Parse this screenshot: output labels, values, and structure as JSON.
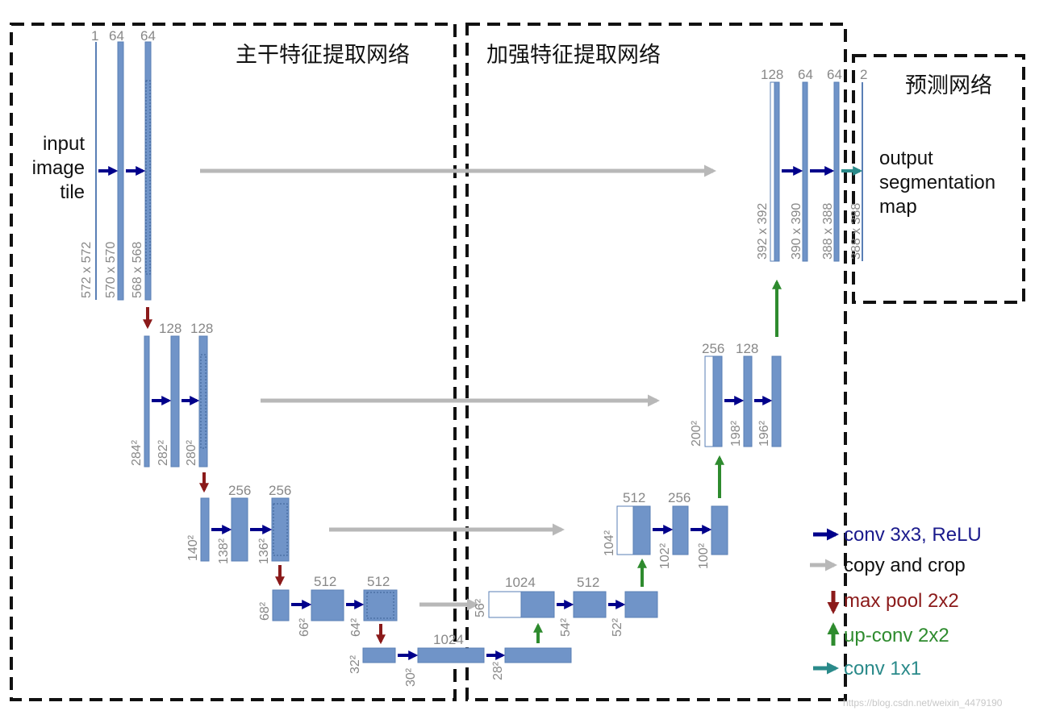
{
  "sections": {
    "backbone": "主干特征提取网络",
    "enhanced": "加强特征提取网络",
    "prediction": "预测网络"
  },
  "input_label": [
    "input",
    "image",
    "tile"
  ],
  "output_label": [
    "output",
    "segmentation",
    "map"
  ],
  "channels": {
    "l1_in": "1",
    "l1_a": "64",
    "l1_b": "64",
    "l2_a": "128",
    "l2_b": "128",
    "l3_a": "256",
    "l3_b": "256",
    "l4_a": "512",
    "l4_b": "512",
    "l5": "1024",
    "u4_in": "1024",
    "u4_a": "512",
    "u3_in": "512",
    "u3_a": "256",
    "u2_in": "256",
    "u2_a": "128",
    "u1_in": "128",
    "u1_a": "64",
    "u1_b": "64",
    "u1_out": "2"
  },
  "sizes": {
    "l1_in": "572 x 572",
    "l1_a": "570 x 570",
    "l1_b": "568 x 568",
    "l2_in": "284²",
    "l2_a": "282²",
    "l2_b": "280²",
    "l3_in": "140²",
    "l3_a": "138²",
    "l3_b": "136²",
    "l4_in": "68²",
    "l4_a": "66²",
    "l4_b": "64²",
    "l5_in": "32²",
    "l5_a": "30²",
    "l5_b": "28²",
    "u4_in": "56²",
    "u4_a": "54²",
    "u4_b": "52²",
    "u3_in": "104²",
    "u3_a": "102²",
    "u3_b": "100²",
    "u2_in": "200²",
    "u2_a": "198²",
    "u2_b": "196²",
    "u1_in": "392 x 392",
    "u1_a": "390 x 390",
    "u1_b": "388 x 388",
    "u1_out": "388 x 388"
  },
  "legend": [
    {
      "label": "conv 3x3, ReLU",
      "color": "#1a1a8c",
      "icon": "right-arrow-icon"
    },
    {
      "label": "copy and crop",
      "color": "#111111",
      "icon": "right-arrow-icon"
    },
    {
      "label": "max pool 2x2",
      "color": "#8b1a1a",
      "icon": "down-arrow-icon"
    },
    {
      "label": "up-conv 2x2",
      "color": "#2e8b2e",
      "icon": "up-arrow-icon"
    },
    {
      "label": "conv 1x1",
      "color": "#2a8a8a",
      "icon": "right-arrow-icon"
    }
  ],
  "watermark": "https://blog.csdn.net/weixin_4479190",
  "colors": {
    "block_fill": "#7094c8",
    "block_stroke": "#5a7fb5",
    "conv_arrow": "#00008b",
    "copy_arrow": "#b8b8b8",
    "pool_arrow": "#8b1a1a",
    "up_arrow": "#2e8b2e",
    "conv1x1_arrow": "#2a8a8a",
    "dashed_border": "#111111"
  }
}
